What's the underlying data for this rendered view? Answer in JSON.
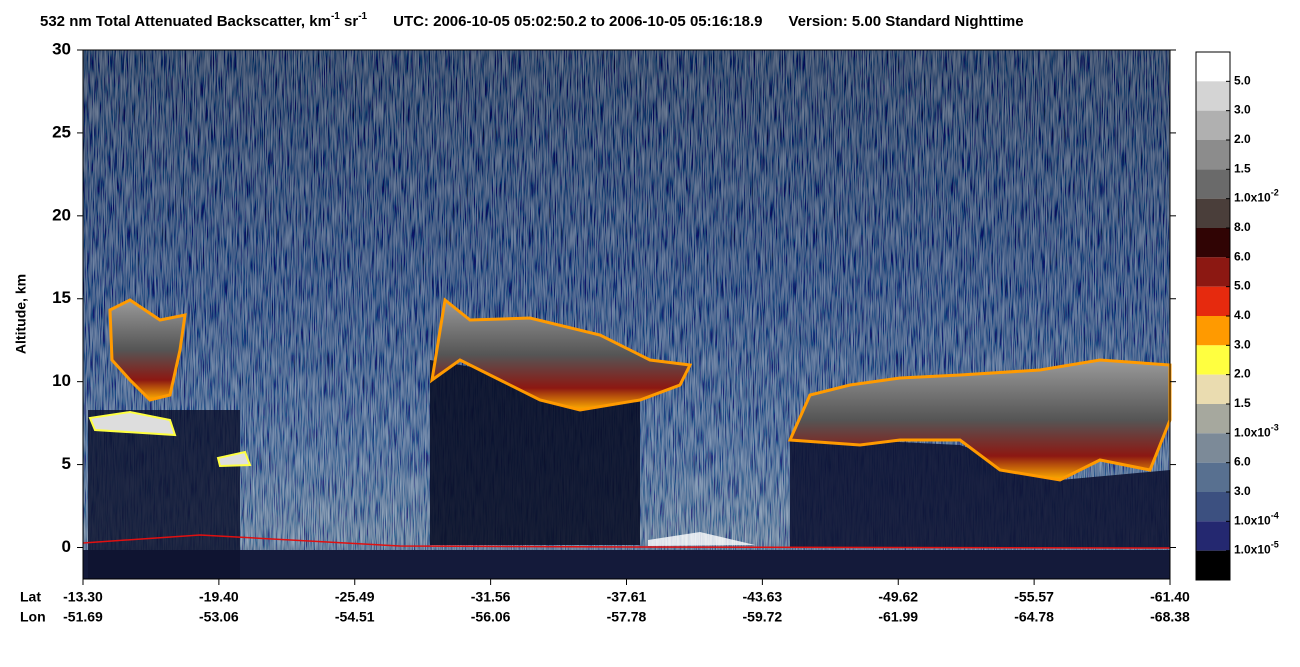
{
  "chart_data": {
    "type": "curtain",
    "title": {
      "main": "532 nm Total Attenuated Backscatter, km",
      "exp1": "-1",
      "unit2": " sr",
      "exp2": "-1",
      "time": "UTC:  2006-10-05 05:02:50.2  to  2006-10-05 05:16:18.9",
      "version": "Version: 5.00  Standard  Nighttime"
    },
    "y_label": "Altitude, km",
    "ylim": [
      -1.9,
      30
    ],
    "yticks": [
      0,
      5,
      10,
      15,
      20,
      25,
      30
    ],
    "x_row_labels": [
      "Lat",
      "Lon"
    ],
    "x_ticks": [
      {
        "lat": "-13.30",
        "lon": "-51.69"
      },
      {
        "lat": "-19.40",
        "lon": "-53.06"
      },
      {
        "lat": "-25.49",
        "lon": "-54.51"
      },
      {
        "lat": "-31.56",
        "lon": "-56.06"
      },
      {
        "lat": "-37.61",
        "lon": "-57.78"
      },
      {
        "lat": "-43.63",
        "lon": "-59.72"
      },
      {
        "lat": "-49.62",
        "lon": "-61.99"
      },
      {
        "lat": "-55.57",
        "lon": "-64.78"
      },
      {
        "lat": "-61.40",
        "lon": "-68.38"
      }
    ],
    "colorbar": {
      "colors": [
        "#ffffff",
        "#d4d4d4",
        "#b0b0b0",
        "#8c8c8c",
        "#6a6a6a",
        "#4a3e3a",
        "#300404",
        "#8c1812",
        "#e62a0e",
        "#ff9a00",
        "#ffff40",
        "#eadcb0",
        "#a6a89e",
        "#7c8a98",
        "#587090",
        "#3c5080",
        "#242870",
        "#000000"
      ],
      "labels": [
        {
          "base": "5.0"
        },
        {
          "base": "3.0"
        },
        {
          "base": "2.0"
        },
        {
          "base": "1.5"
        },
        {
          "base": "1.0x10",
          "exp": "-2"
        },
        {
          "base": "8.0"
        },
        {
          "base": "6.0"
        },
        {
          "base": "5.0"
        },
        {
          "base": "4.0"
        },
        {
          "base": "3.0"
        },
        {
          "base": "2.0"
        },
        {
          "base": "1.5"
        },
        {
          "base": "1.0x10",
          "exp": "-3"
        },
        {
          "base": "6.0"
        },
        {
          "base": "3.0"
        },
        {
          "base": "1.0x10",
          "exp": "-4"
        },
        {
          "base": "1.0x10",
          "exp": "-5"
        }
      ]
    }
  }
}
